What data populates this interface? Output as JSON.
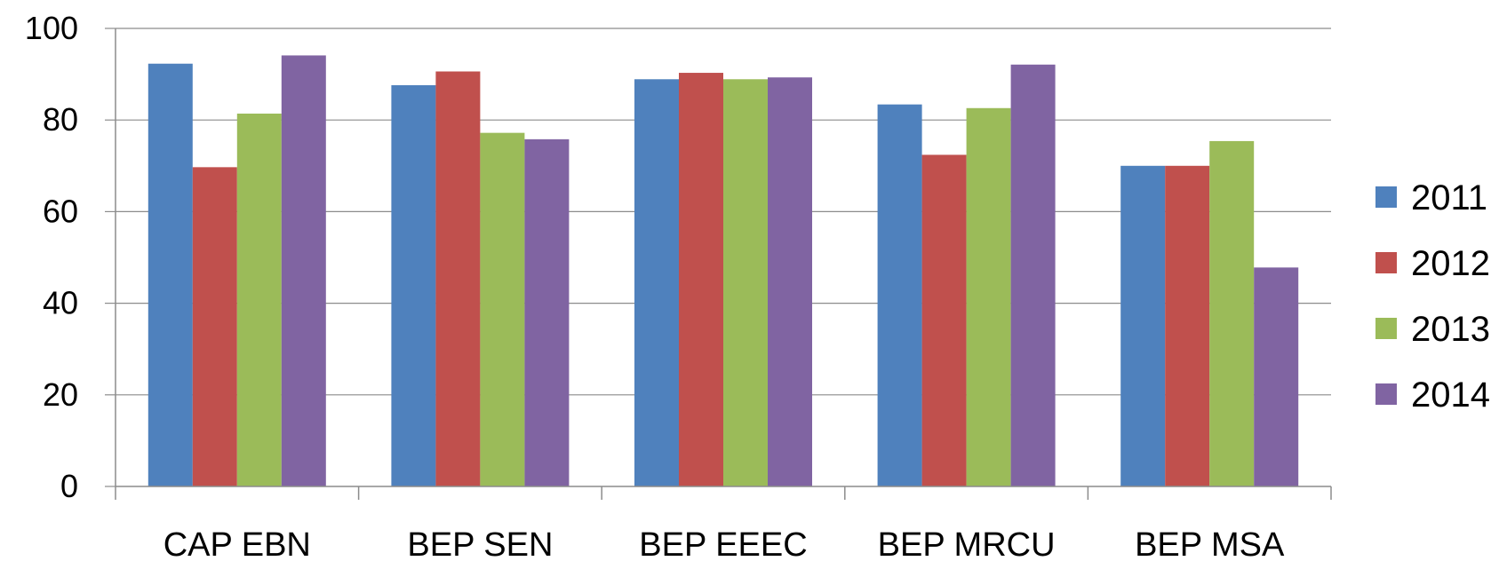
{
  "chart_data": {
    "type": "bar",
    "categories": [
      "CAP EBN",
      "BEP SEN",
      "BEP EEEC",
      "BEP MRCU",
      "BEP MSA"
    ],
    "series": [
      {
        "name": "2011",
        "color": "#4F81BD",
        "values": [
          92.3,
          87.6,
          88.9,
          83.4,
          70.0
        ]
      },
      {
        "name": "2012",
        "color": "#C0504D",
        "values": [
          69.7,
          90.6,
          90.3,
          72.4,
          70.0
        ]
      },
      {
        "name": "2013",
        "color": "#9BBB59",
        "values": [
          81.4,
          77.2,
          88.9,
          82.6,
          75.4
        ]
      },
      {
        "name": "2014",
        "color": "#8064A2",
        "values": [
          94.1,
          75.8,
          89.3,
          92.1,
          47.8
        ]
      }
    ],
    "ylim": [
      0,
      100
    ],
    "yticks": [
      "0",
      "20",
      "40",
      "60",
      "80",
      "100"
    ],
    "grid": true,
    "legend_position": "right",
    "title": "",
    "xlabel": "",
    "ylabel": ""
  }
}
